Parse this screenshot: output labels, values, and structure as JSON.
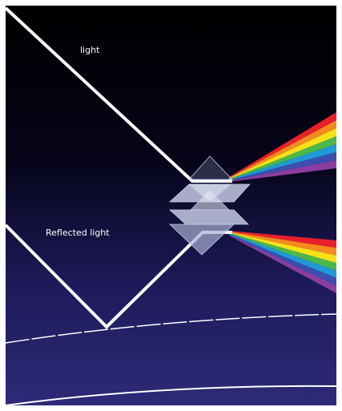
{
  "labels": {
    "incident": "light",
    "reflected": "Reflected light"
  }
}
